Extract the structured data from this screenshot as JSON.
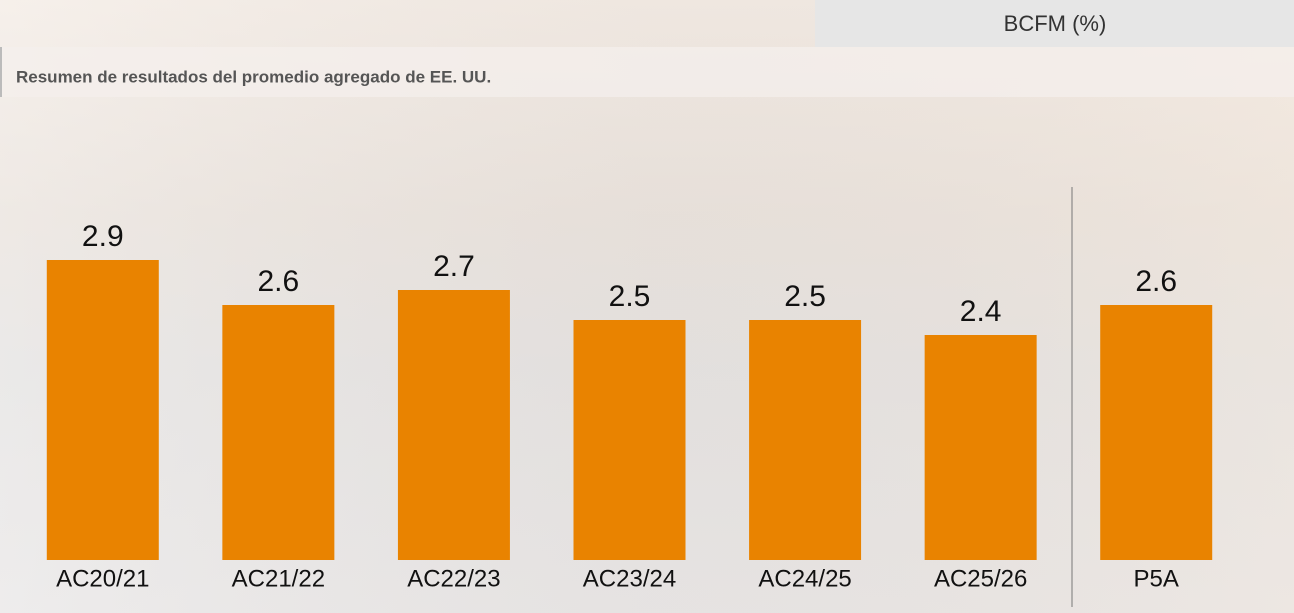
{
  "chart_data": {
    "type": "bar",
    "header": "BCFM (%)",
    "title": "Resumen de resultados del promedio agregado de EE. UU.",
    "categories": [
      "AC20/21",
      "AC21/22",
      "AC22/23",
      "AC23/24",
      "AC24/25",
      "AC25/26",
      "P5A"
    ],
    "values": [
      2.9,
      2.6,
      2.7,
      2.5,
      2.5,
      2.4,
      2.6
    ],
    "color": "#e98300",
    "ylim": [
      0.9,
      3.5
    ]
  }
}
